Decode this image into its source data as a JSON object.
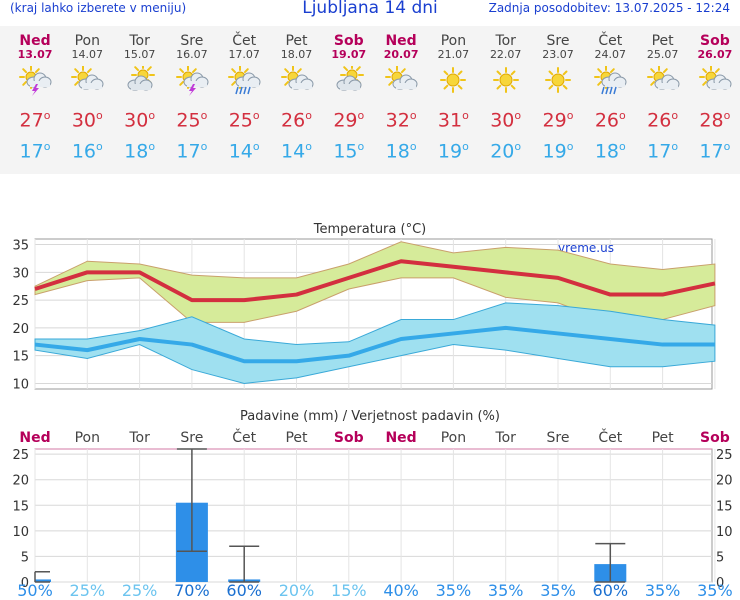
{
  "header": {
    "left_note": "(kraj lahko izberete v meniju)",
    "title": "Ljubljana 14 dni",
    "updated": "Zadnja posodobitev: 13.07.2025 - 12:24"
  },
  "days": [
    {
      "name": "Ned",
      "date": "13.07",
      "weekend": true,
      "icon": "thunderstorm-icon",
      "tmax": "27",
      "tmin": "17"
    },
    {
      "name": "Pon",
      "date": "14.07",
      "weekend": false,
      "icon": "sun-cloud-icon",
      "tmax": "30",
      "tmin": "16"
    },
    {
      "name": "Tor",
      "date": "15.07",
      "weekend": false,
      "icon": "cloudy-sun-icon",
      "tmax": "30",
      "tmin": "18"
    },
    {
      "name": "Sre",
      "date": "16.07",
      "weekend": false,
      "icon": "thunderstorm-icon",
      "tmax": "25",
      "tmin": "17"
    },
    {
      "name": "Čet",
      "date": "17.07",
      "weekend": false,
      "icon": "rain-sun-icon",
      "tmax": "25",
      "tmin": "14"
    },
    {
      "name": "Pet",
      "date": "18.07",
      "weekend": false,
      "icon": "sun-cloud-icon",
      "tmax": "26",
      "tmin": "14"
    },
    {
      "name": "Sob",
      "date": "19.07",
      "weekend": true,
      "icon": "cloudy-sun-icon",
      "tmax": "29",
      "tmin": "15"
    },
    {
      "name": "Ned",
      "date": "20.07",
      "weekend": true,
      "icon": "sun-cloud-icon",
      "tmax": "32",
      "tmin": "18"
    },
    {
      "name": "Pon",
      "date": "21.07",
      "weekend": false,
      "icon": "sun-icon",
      "tmax": "31",
      "tmin": "19"
    },
    {
      "name": "Tor",
      "date": "22.07",
      "weekend": false,
      "icon": "sun-icon",
      "tmax": "30",
      "tmin": "20"
    },
    {
      "name": "Sre",
      "date": "23.07",
      "weekend": false,
      "icon": "sun-icon",
      "tmax": "29",
      "tmin": "19"
    },
    {
      "name": "Čet",
      "date": "24.07",
      "weekend": false,
      "icon": "rain-sun-icon",
      "tmax": "26",
      "tmin": "18"
    },
    {
      "name": "Pet",
      "date": "25.07",
      "weekend": false,
      "icon": "sun-cloud-icon",
      "tmax": "26",
      "tmin": "17"
    },
    {
      "name": "Sob",
      "date": "26.07",
      "weekend": true,
      "icon": "sun-cloud-icon",
      "tmax": "28",
      "tmin": "17"
    }
  ],
  "colors": {
    "max": "#d32f3f",
    "min": "#35a9e8",
    "weekend": "#b5005a",
    "max_band": "#d6eb9a",
    "min_band": "#9fe0f0",
    "bar": "#2e8fe8"
  },
  "chart_data": [
    {
      "type": "line",
      "title": "Temperatura (°C)",
      "watermark": "vreme.us",
      "ylim": [
        9,
        36
      ],
      "yticks": [
        10,
        15,
        20,
        25,
        30,
        35
      ],
      "grid": true,
      "x": [
        "13.07",
        "14.07",
        "15.07",
        "16.07",
        "17.07",
        "18.07",
        "19.07",
        "20.07",
        "21.07",
        "22.07",
        "23.07",
        "24.07",
        "25.07",
        "26.07"
      ],
      "series": [
        {
          "values": [
            27,
            30,
            30,
            25,
            25,
            26,
            29,
            32,
            31,
            30,
            29,
            26,
            26,
            28
          ]
        },
        {
          "values": [
            27.5,
            32,
            31.5,
            29.5,
            29,
            29,
            31.5,
            35.5,
            33.5,
            34.5,
            34,
            31.5,
            30.5,
            31.5
          ]
        },
        {
          "values": [
            26,
            28.5,
            29,
            21,
            21,
            23,
            27,
            29,
            29,
            25.5,
            24.5,
            21,
            21.5,
            24
          ]
        },
        {
          "values": [
            17,
            16,
            18,
            17,
            14,
            14,
            15,
            18,
            19,
            20,
            19,
            18,
            17,
            17
          ]
        },
        {
          "values": [
            18,
            18,
            19.5,
            22,
            18,
            17,
            17.5,
            21.5,
            21.5,
            24.5,
            24,
            23,
            21.5,
            20.5
          ]
        },
        {
          "values": [
            16,
            14.5,
            17,
            12.5,
            10,
            11,
            13,
            15,
            17,
            16,
            14.5,
            13,
            13,
            14
          ]
        }
      ]
    },
    {
      "type": "bar",
      "title": "Padavine (mm) / Verjetnost padavin (%)",
      "ylim": [
        0,
        26
      ],
      "yticks": [
        0,
        5,
        10,
        15,
        20,
        25
      ],
      "categories": [
        "Ned",
        "Pon",
        "Tor",
        "Sre",
        "Čet",
        "Pet",
        "Sob",
        "Ned",
        "Pon",
        "Tor",
        "Sre",
        "Čet",
        "Pet",
        "Sob"
      ],
      "values": [
        0.5,
        0,
        0,
        15.5,
        0.5,
        0,
        0,
        0,
        0,
        0,
        0,
        3.5,
        0,
        0
      ],
      "error_low": [
        0,
        null,
        null,
        6,
        0,
        null,
        null,
        null,
        null,
        null,
        null,
        0,
        null,
        null
      ],
      "error_high": [
        2,
        null,
        null,
        26,
        7,
        null,
        null,
        null,
        null,
        null,
        null,
        7.5,
        null,
        null
      ],
      "probability": [
        "50%",
        "25%",
        "25%",
        "70%",
        "60%",
        "20%",
        "15%",
        "40%",
        "35%",
        "35%",
        "35%",
        "60%",
        "35%",
        "35%"
      ]
    }
  ]
}
